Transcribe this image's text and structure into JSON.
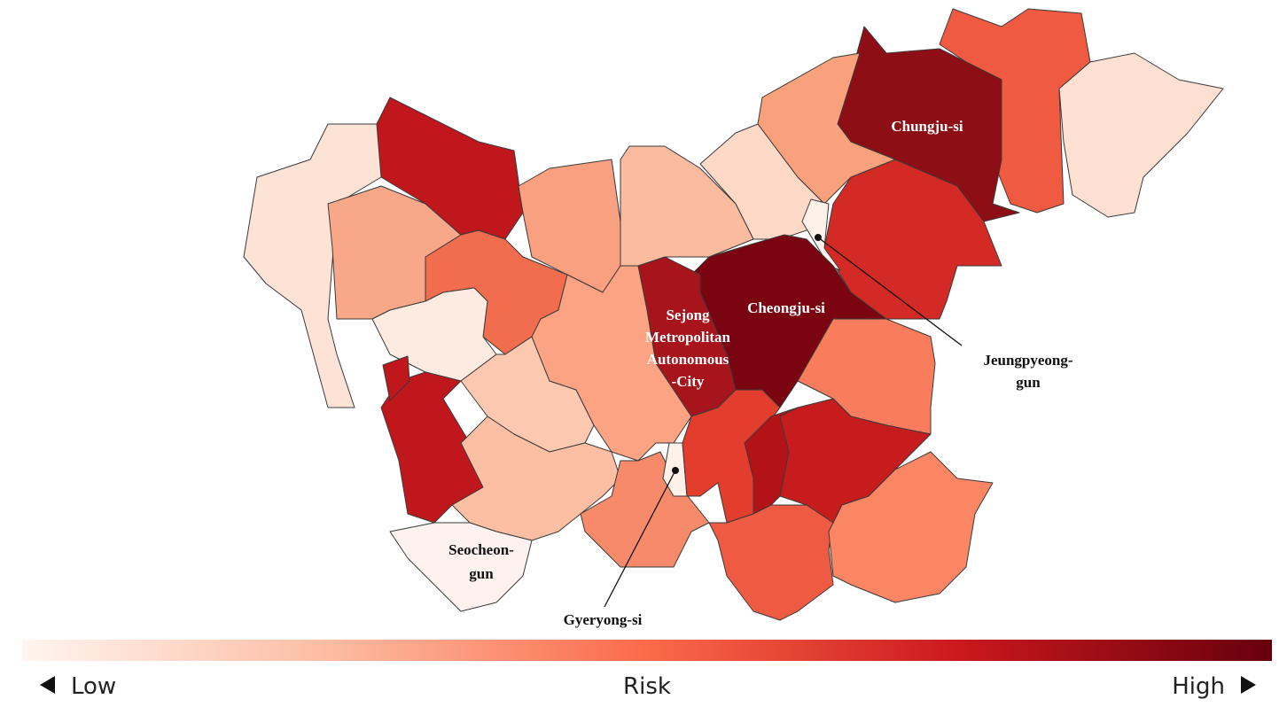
{
  "map": {
    "labels": [
      {
        "lines": [
          "Chungju-si"
        ]
      },
      {
        "lines": [
          "Cheongju-si"
        ]
      },
      {
        "lines": [
          "Sejong",
          "Metropolitan",
          "Autonomous",
          "-City"
        ]
      },
      {
        "lines": [
          "Jeungpyeong-",
          "gun"
        ]
      },
      {
        "lines": [
          "Seocheon-",
          "gun"
        ]
      },
      {
        "lines": [
          "Gyeryong-si"
        ]
      }
    ]
  },
  "legend": {
    "low": "Low",
    "title": "Risk",
    "high": "High"
  }
}
